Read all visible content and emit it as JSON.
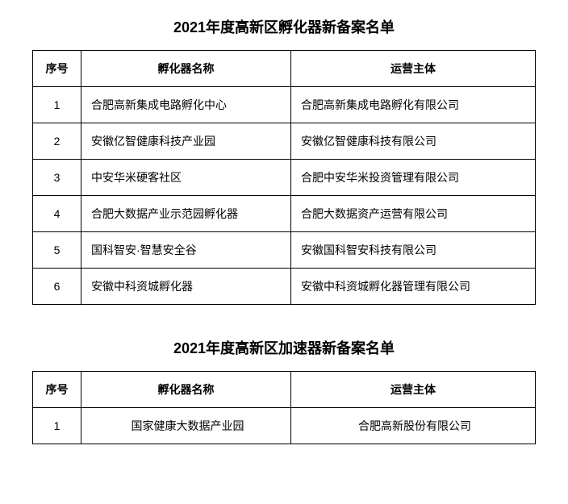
{
  "section1": {
    "title": "2021年度高新区孵化器新备案名单",
    "columns": [
      "序号",
      "孵化器名称",
      "运营主体"
    ],
    "rows": [
      {
        "no": "1",
        "name": "合肥高新集成电路孵化中心",
        "entity": "合肥高新集成电路孵化有限公司"
      },
      {
        "no": "2",
        "name": "安徽亿智健康科技产业园",
        "entity": "安徽亿智健康科技有限公司"
      },
      {
        "no": "3",
        "name": "中安华米硬客社区",
        "entity": "合肥中安华米投资管理有限公司"
      },
      {
        "no": "4",
        "name": "合肥大数据产业示范园孵化器",
        "entity": "合肥大数据资产运营有限公司"
      },
      {
        "no": "5",
        "name": "国科智安·智慧安全谷",
        "entity": "安徽国科智安科技有限公司"
      },
      {
        "no": "6",
        "name": "安徽中科资城孵化器",
        "entity": "安徽中科资城孵化器管理有限公司"
      }
    ]
  },
  "section2": {
    "title": "2021年度高新区加速器新备案名单",
    "columns": [
      "序号",
      "孵化器名称",
      "运营主体"
    ],
    "rows": [
      {
        "no": "1",
        "name": "国家健康大数据产业园",
        "entity": "合肥高新股份有限公司"
      }
    ]
  }
}
